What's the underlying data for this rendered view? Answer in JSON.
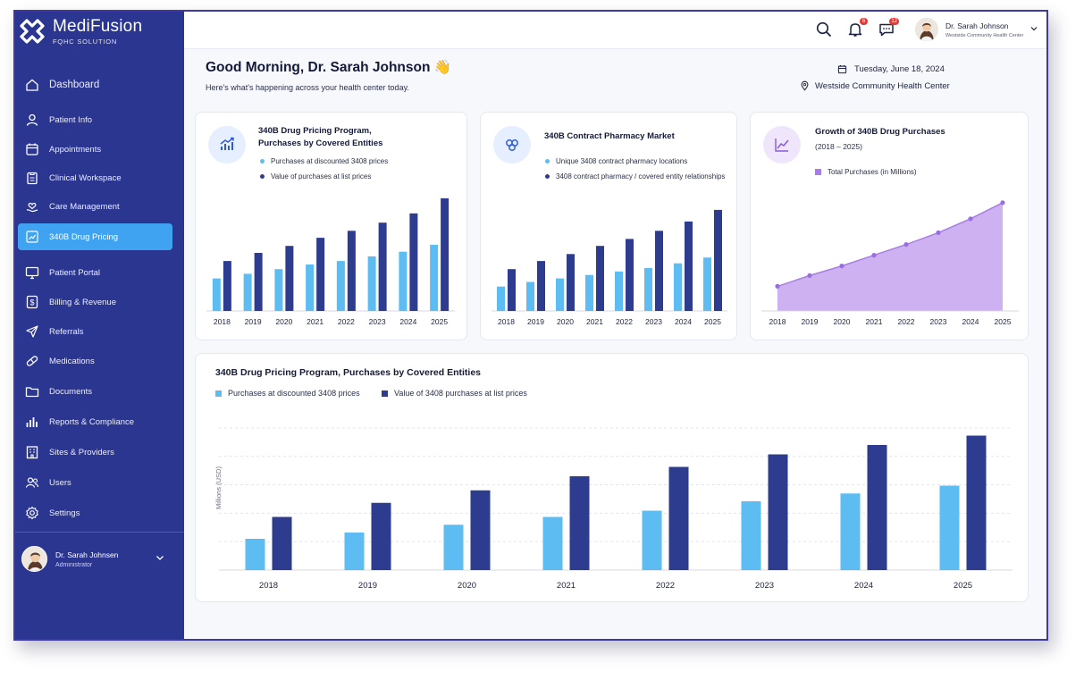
{
  "brand": {
    "name": "MediFusion",
    "subtitle": "FQHC SOLUTION"
  },
  "nav": [
    {
      "label": "Dashboard",
      "icon": "home-icon"
    },
    {
      "label": "Patient Info",
      "icon": "user-icon"
    },
    {
      "label": "Appointments",
      "icon": "calendar-icon"
    },
    {
      "label": "Clinical Workspace",
      "icon": "clipboard-icon"
    },
    {
      "label": "Care Management",
      "icon": "care-icon"
    },
    {
      "label": "340B Drug Pricing",
      "icon": "chart-icon",
      "active": true
    },
    {
      "label": "Patient Portal",
      "icon": "monitor-icon"
    },
    {
      "label": "Billing & Revenue",
      "icon": "dollar-icon"
    },
    {
      "label": "Referrals",
      "icon": "send-icon"
    },
    {
      "label": "Medications",
      "icon": "pill-icon"
    },
    {
      "label": "Documents",
      "icon": "folder-icon"
    },
    {
      "label": "Reports & Compliance",
      "icon": "bar-chart-icon"
    },
    {
      "label": "Sites & Providers",
      "icon": "building-icon"
    },
    {
      "label": "Users",
      "icon": "users-icon"
    },
    {
      "label": "Settings",
      "icon": "gear-icon"
    }
  ],
  "sidebar_user": {
    "name": "Dr. Sarah Johnsen",
    "role": "Administrator"
  },
  "topbar": {
    "notifications": "6",
    "messages": "12",
    "user_name": "Dr. Sarah Johnson",
    "user_org": "Westside Community Health Center"
  },
  "greeting": {
    "title": "Good Morning, Dr. Sarah Johnson 👋",
    "subtitle": "Here's what's happening across your health center today.",
    "date": "Tuesday, June 18, 2024",
    "location": "Westside Community Health Center"
  },
  "colors": {
    "light_bar": "#5dbdf2",
    "dark_bar": "#2d3c8e",
    "purple": "#a77ee3",
    "sidebar": "#2b3690",
    "active": "#3fa3f2"
  },
  "cards": {
    "card1": {
      "title_line1": "340B Drug Pricing Program,",
      "title_line2": "Purchases by Covered Entities",
      "legend1": "Purchases at discounted 3408 prices",
      "legend2": "Value of purchases at list prices"
    },
    "card2": {
      "title": "340B Contract Pharmacy Market",
      "legend1": "Unique 3408 contract pharmacy locations",
      "legend2": "3408 contract pharmacy / covered entity relationships"
    },
    "card3": {
      "title": "Growth of 340B Drug Purchases",
      "subtitle": "(2018 – 2025)",
      "legend1": "Total Purchases (in Millions)"
    },
    "big": {
      "title": "340B Drug Pricing Program, Purchases by Covered Entities",
      "legend1": "Purchases at discounted 3408 prices",
      "legend2": "Value of 3408 purchases at list prices",
      "ylabel": "Millions (USD)"
    }
  },
  "chart_data": [
    {
      "type": "bar",
      "categories": [
        "2018",
        "2019",
        "2020",
        "2021",
        "2022",
        "2023",
        "2024",
        "2025"
      ],
      "series": [
        {
          "name": "Purchases at discounted 3408 prices",
          "values": [
            28,
            32,
            36,
            40,
            43,
            47,
            51,
            57
          ]
        },
        {
          "name": "Value of purchases at list prices",
          "values": [
            43,
            50,
            56,
            63,
            69,
            76,
            84,
            97
          ]
        }
      ],
      "ylim": [
        0,
        100
      ],
      "grid": false
    },
    {
      "type": "bar",
      "categories": [
        "2018",
        "2019",
        "2020",
        "2021",
        "2022",
        "2023",
        "2024",
        "2025"
      ],
      "series": [
        {
          "name": "Unique 3408 contract pharmacy locations",
          "values": [
            21,
            25,
            28,
            31,
            34,
            37,
            41,
            46
          ]
        },
        {
          "name": "3408 contract pharmacy / covered entity relationships",
          "values": [
            36,
            43,
            49,
            56,
            62,
            69,
            77,
            87
          ]
        }
      ],
      "ylim": [
        0,
        100
      ],
      "grid": false
    },
    {
      "type": "area",
      "categories": [
        "2018",
        "2019",
        "2020",
        "2021",
        "2022",
        "2023",
        "2024",
        "2025"
      ],
      "series": [
        {
          "name": "Total Purchases (in Millions)",
          "values": [
            23,
            33,
            42,
            52,
            62,
            73,
            86,
            101
          ]
        }
      ],
      "ylim": [
        0,
        110
      ],
      "grid": false
    },
    {
      "type": "bar",
      "categories": [
        "2018",
        "2019",
        "2020",
        "2021",
        "2022",
        "2023",
        "2024",
        "2025"
      ],
      "series": [
        {
          "name": "Purchases at discounted 3408 prices",
          "values": [
            20,
            24,
            29,
            34,
            38,
            44,
            49,
            54
          ]
        },
        {
          "name": "Value of 3408 purchases at list prices",
          "values": [
            34,
            43,
            51,
            60,
            66,
            74,
            80,
            86
          ]
        }
      ],
      "ylabel": "Millions (USD)",
      "ylim": [
        0,
        100
      ],
      "grid": true
    }
  ]
}
